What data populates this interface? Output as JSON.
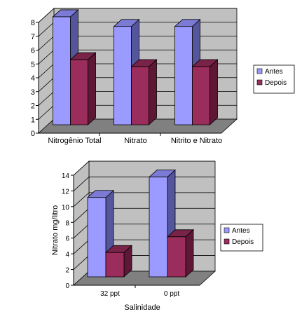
{
  "chart_data": [
    {
      "type": "bar",
      "categories": [
        "Nitrogênio Total",
        "Nitrato",
        "Nitrito e Nitrato"
      ],
      "series": [
        {
          "name": "Antes",
          "values": [
            7.8,
            7.1,
            7.1
          ]
        },
        {
          "name": "Depois",
          "values": [
            4.7,
            4.2,
            4.2
          ]
        }
      ],
      "ylim": [
        0,
        8
      ],
      "yticks": [
        "0",
        "1",
        "2",
        "3",
        "4",
        "5",
        "6",
        "7",
        "8"
      ],
      "xlabel": "",
      "ylabel": "",
      "grid": true,
      "legend": "right",
      "style": "3d"
    },
    {
      "type": "bar",
      "categories": [
        "32 ppt",
        "0 ppt"
      ],
      "series": [
        {
          "name": "Antes",
          "values": [
            10.1,
            12.7
          ]
        },
        {
          "name": "Depois",
          "values": [
            3.1,
            5.1
          ]
        }
      ],
      "ylim": [
        0,
        14
      ],
      "yticks": [
        "0",
        "2",
        "4",
        "6",
        "8",
        "10",
        "12",
        "14"
      ],
      "xlabel": "Salinidade",
      "ylabel": "Nitrato mg/litro",
      "grid": true,
      "legend": "right",
      "style": "3d"
    }
  ],
  "colors": {
    "antes_front": "#9b9bff",
    "antes_side": "#55559c",
    "antes_top": "#7b7bd6",
    "depois_front": "#9b2d5c",
    "depois_side": "#5e1836",
    "depois_top": "#7a2348",
    "wall": "#c0c0c0",
    "floor": "#808080",
    "grid": "#000000"
  }
}
